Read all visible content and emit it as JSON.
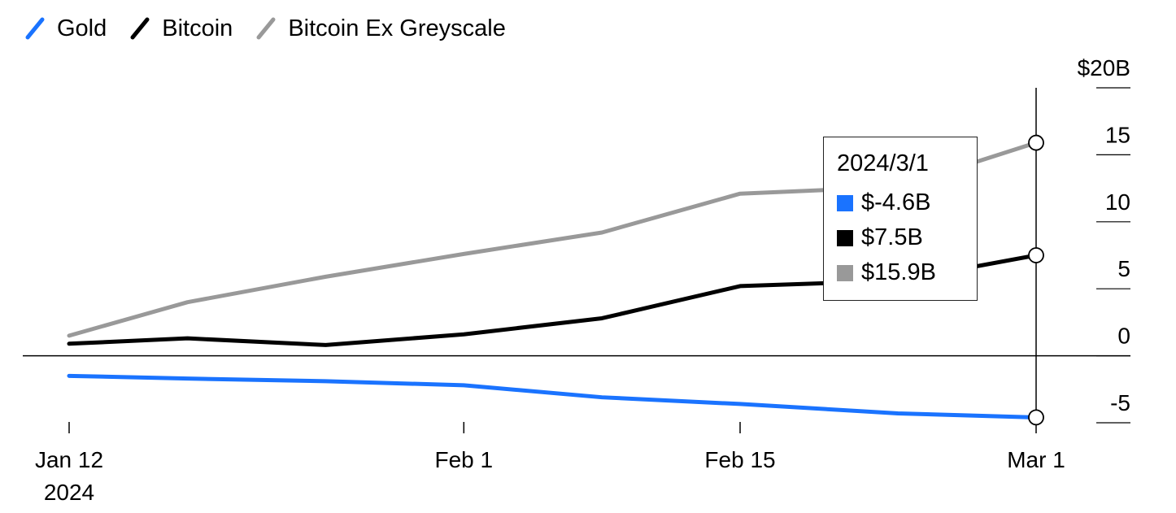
{
  "chart_data": {
    "type": "line",
    "x": [
      "2024-01-12",
      "2024-01-18",
      "2024-01-25",
      "2024-02-01",
      "2024-02-08",
      "2024-02-15",
      "2024-02-23",
      "2024-03-01"
    ],
    "series": [
      {
        "name": "Gold",
        "color": "#1a73ff",
        "values": [
          -1.5,
          -1.7,
          -1.9,
          -2.2,
          -3.1,
          -3.6,
          -4.3,
          -4.6
        ]
      },
      {
        "name": "Bitcoin",
        "color": "#000000",
        "values": [
          0.9,
          1.3,
          0.8,
          1.6,
          2.8,
          5.2,
          5.6,
          7.5
        ]
      },
      {
        "name": "Bitcoin Ex Greyscale",
        "color": "#999999",
        "values": [
          1.5,
          4.0,
          5.9,
          7.6,
          9.2,
          12.1,
          12.6,
          15.9
        ]
      }
    ],
    "y_ticks": [
      "$20B",
      "15",
      "10",
      "5",
      "0",
      "-5"
    ],
    "y_tick_values": [
      20,
      15,
      10,
      5,
      0,
      -5
    ],
    "ylim": [
      -5,
      20
    ],
    "x_ticks": [
      {
        "label": "Jan 12",
        "sub": "2024",
        "date": "2024-01-12"
      },
      {
        "label": "Feb 1",
        "sub": "",
        "date": "2024-02-01"
      },
      {
        "label": "Feb 15",
        "sub": "",
        "date": "2024-02-15"
      },
      {
        "label": "Mar 1",
        "sub": "",
        "date": "2024-03-01"
      }
    ],
    "legend_position": "top-left",
    "tooltip": {
      "date": "2024/3/1",
      "rows": [
        {
          "label": "$-4.6B",
          "color": "#1a73ff"
        },
        {
          "label": "$7.5B",
          "color": "#000000"
        },
        {
          "label": "$15.9B",
          "color": "#999999"
        }
      ]
    }
  }
}
